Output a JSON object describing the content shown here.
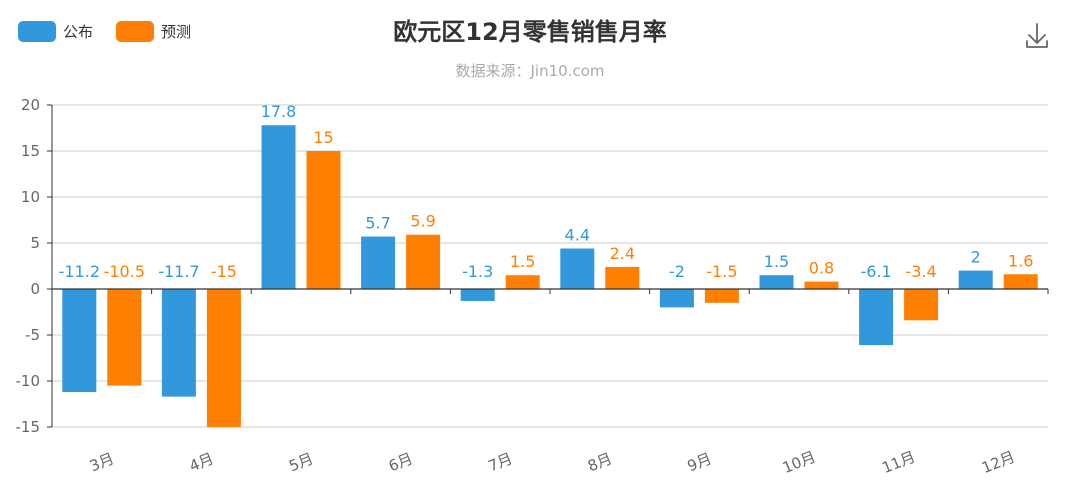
{
  "chart_data": {
    "type": "bar",
    "title": "欧元区12月零售销售月率",
    "subtitle": "数据来源：Jin10.com",
    "categories": [
      "3月",
      "4月",
      "5月",
      "6月",
      "7月",
      "8月",
      "9月",
      "10月",
      "11月",
      "12月"
    ],
    "series": [
      {
        "name": "公布",
        "color": "#3398DB",
        "values": [
          -11.2,
          -11.7,
          17.8,
          5.7,
          -1.3,
          4.4,
          -2,
          1.5,
          -6.1,
          2
        ]
      },
      {
        "name": "预测",
        "color": "#FF7F00",
        "values": [
          -10.5,
          -15,
          15,
          5.9,
          1.5,
          2.4,
          -1.5,
          0.8,
          -3.4,
          1.6
        ]
      }
    ],
    "ylim": [
      -15,
      20
    ],
    "yticks": [
      -15,
      -10,
      -5,
      0,
      5,
      10,
      15,
      20
    ],
    "grid": true,
    "legend_position": "top-left"
  },
  "toolbar": {
    "download_icon": "download-icon"
  }
}
